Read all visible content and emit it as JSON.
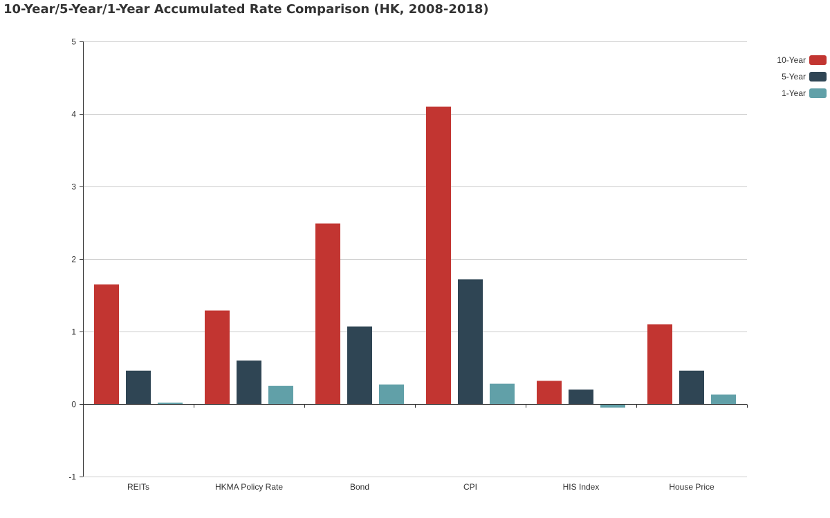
{
  "chart_data": {
    "type": "bar",
    "title": "10-Year/5-Year/1-Year Accumulated  Rate Comparison (HK, 2008-2018)",
    "categories": [
      "REITs",
      "HKMA Policy Rate",
      "Bond",
      "CPI",
      "HIS Index",
      "House Price"
    ],
    "series": [
      {
        "name": "10-Year",
        "color": "#c23531",
        "values": [
          1.65,
          1.29,
          2.49,
          4.1,
          0.32,
          1.1
        ]
      },
      {
        "name": "5-Year",
        "color": "#2f4554",
        "values": [
          0.46,
          0.6,
          1.07,
          1.72,
          0.2,
          0.46
        ]
      },
      {
        "name": "1-Year",
        "color": "#61a0a8",
        "values": [
          0.02,
          0.25,
          0.27,
          0.28,
          -0.05,
          0.13
        ]
      }
    ],
    "ylim": [
      -1,
      5
    ],
    "yticks": [
      -1,
      0,
      1,
      2,
      3,
      4,
      5
    ],
    "grid": true,
    "legend_position": "top-right"
  }
}
